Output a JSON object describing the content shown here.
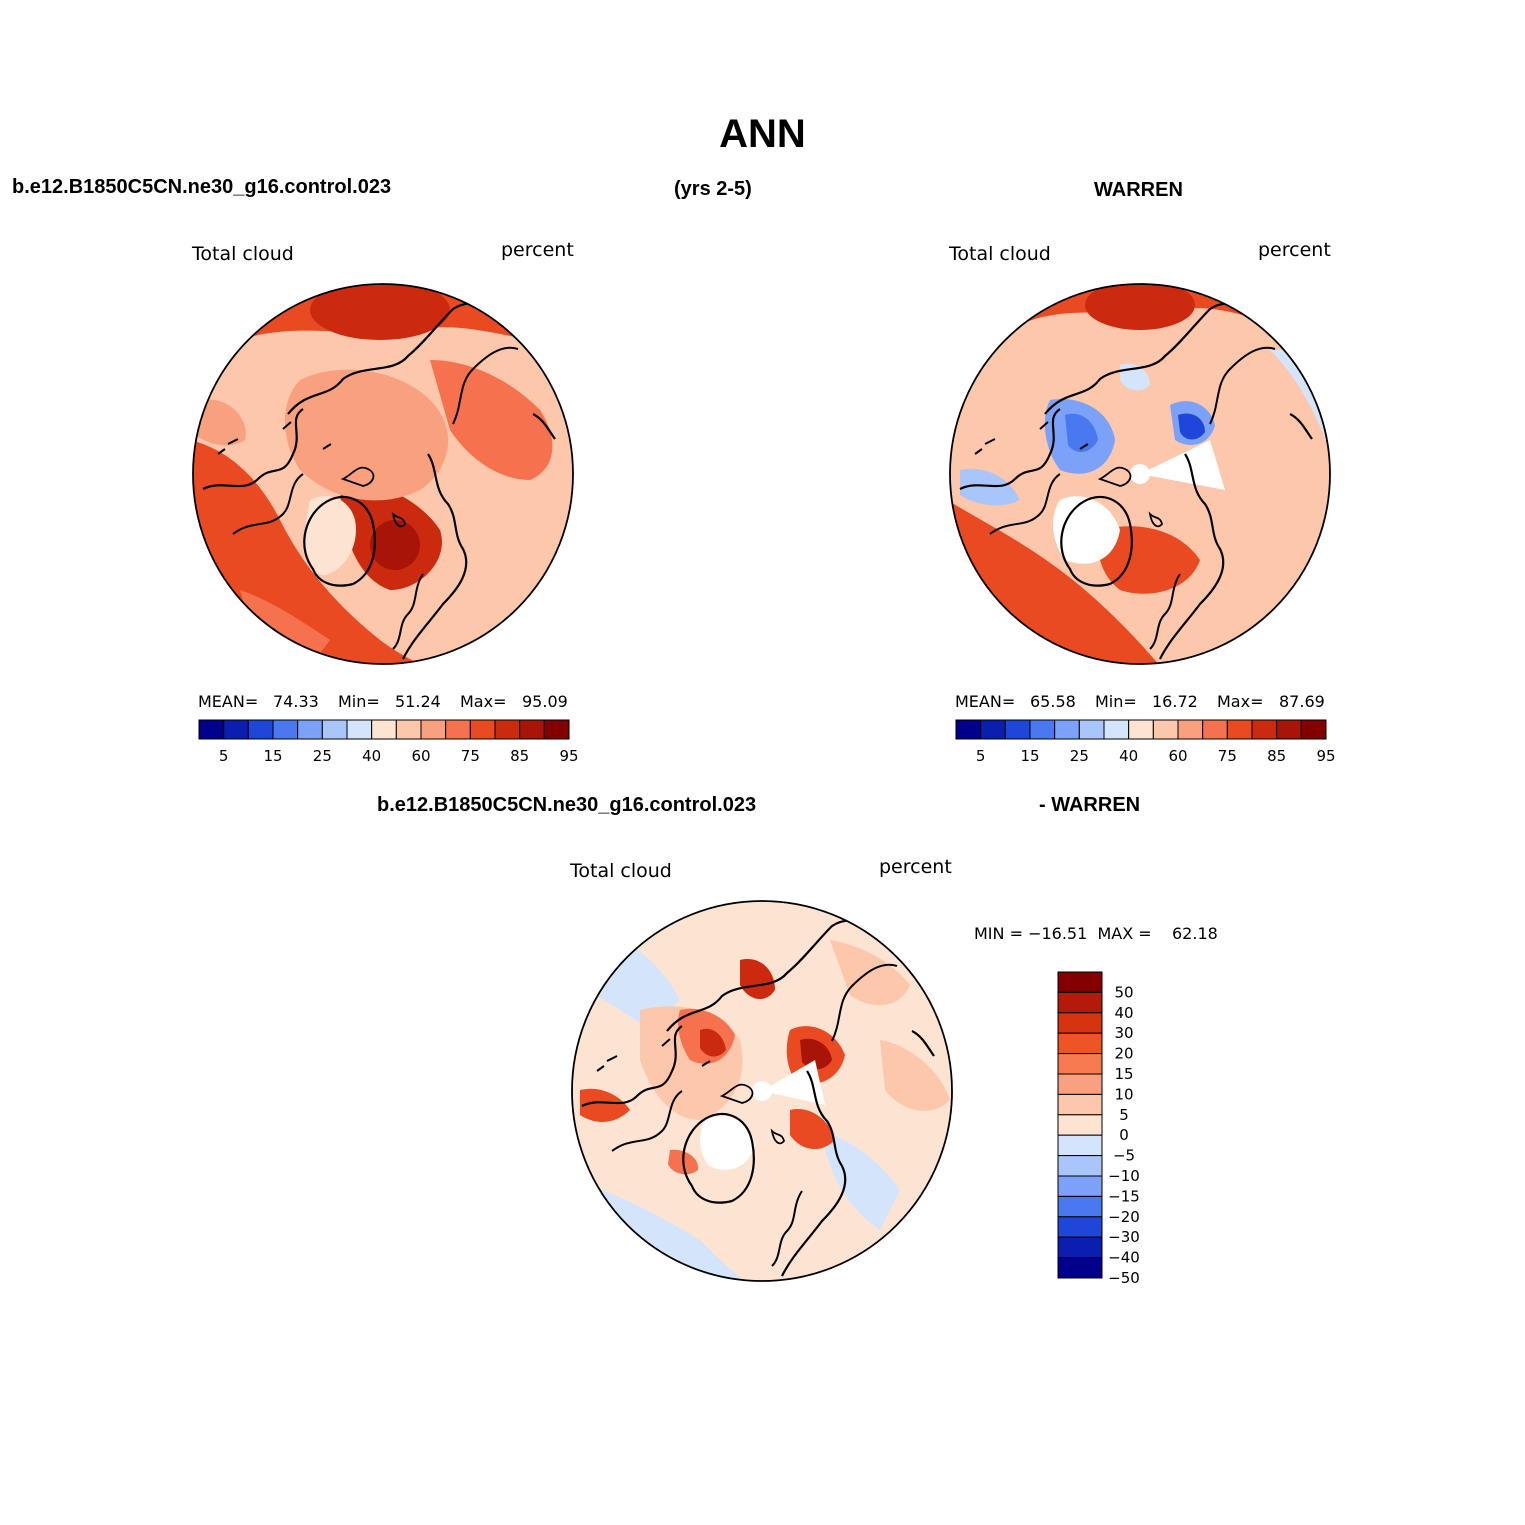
{
  "title": "ANN",
  "header": {
    "case": "b.e12.B1850C5CN.ne30_g16.control.023",
    "years": "(yrs 2-5)",
    "obs": "WARREN"
  },
  "panels": {
    "model": {
      "label": "Total cloud",
      "units": "percent",
      "mean_label": "MEAN=",
      "mean": "74.33",
      "min_label": "Min=",
      "min": "51.24",
      "max_label": "Max=",
      "max": "95.09"
    },
    "obs": {
      "label": "Total cloud",
      "units": "percent",
      "mean_label": "MEAN=",
      "mean": "65.58",
      "min_label": "Min=",
      "min": "16.72",
      "max_label": "Max=",
      "max": "87.69"
    },
    "diff": {
      "title_case": "b.e12.B1850C5CN.ne30_g16.control.023",
      "title_obs": "- WARREN",
      "label": "Total cloud",
      "units": "percent",
      "minmax": "MIN = −16.51  MAX =    62.18"
    }
  },
  "colorbar_abs": {
    "ticks": [
      "5",
      "15",
      "25",
      "40",
      "60",
      "75",
      "85",
      "95"
    ],
    "colors": [
      "#00008c",
      "#0a1fb0",
      "#1e46d8",
      "#4a78f0",
      "#7ba2f8",
      "#a9c6fb",
      "#d4e5fb",
      "#fde4d2",
      "#fcc7ab",
      "#f9a07f",
      "#f6714d",
      "#ea4a21",
      "#cc2a0e",
      "#a81508",
      "#830000"
    ]
  },
  "colorbar_diff": {
    "ticks": [
      "50",
      "40",
      "30",
      "20",
      "15",
      "10",
      "5",
      "0",
      "−5",
      "−10",
      "−15",
      "−20",
      "−30",
      "−40",
      "−50"
    ],
    "colors": [
      "#830000",
      "#b31a0a",
      "#d6330f",
      "#ee5525",
      "#f77a51",
      "#f9a07f",
      "#fcc7ab",
      "#fde4d2",
      "#d4e5fb",
      "#a9c6fb",
      "#7ba2f8",
      "#4a78f0",
      "#1e46d8",
      "#0a1fb0",
      "#00008c"
    ]
  }
}
